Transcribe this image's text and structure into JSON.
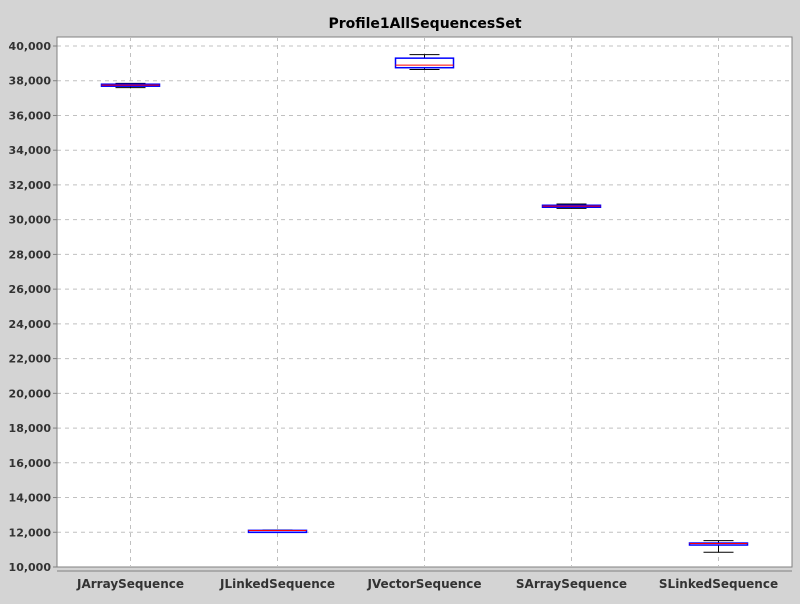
{
  "chart_data": {
    "type": "boxplot",
    "title": "Profile1AllSequencesSet",
    "xlabel": "",
    "ylabel": "",
    "ylim": [
      10000,
      40000
    ],
    "yticks": [
      10000,
      12000,
      14000,
      16000,
      18000,
      20000,
      22000,
      24000,
      26000,
      28000,
      30000,
      32000,
      34000,
      36000,
      38000,
      40000
    ],
    "ytick_labels": [
      "10,000",
      "12,000",
      "14,000",
      "16,000",
      "18,000",
      "20,000",
      "22,000",
      "24,000",
      "26,000",
      "28,000",
      "30,000",
      "32,000",
      "34,000",
      "36,000",
      "38,000",
      "40,000"
    ],
    "grid": true,
    "categories": [
      "JArraySequence",
      "JLinkedSequence",
      "JVectorSequence",
      "SArraySequence",
      "SLinkedSequence"
    ],
    "boxes": [
      {
        "category": "JArraySequence",
        "whisker_low": 37600,
        "q1": 37700,
        "median": 37750,
        "q3": 37800,
        "whisker_high": 37850
      },
      {
        "category": "JLinkedSequence",
        "whisker_low": 12060,
        "q1": 12080,
        "median": 12100,
        "q3": 12110,
        "whisker_high": 12130
      },
      {
        "category": "JVectorSequence",
        "whisker_low": 38650,
        "q1": 38750,
        "median": 38900,
        "q3": 39300,
        "whisker_high": 39500
      },
      {
        "category": "SArraySequence",
        "whisker_low": 30650,
        "q1": 30730,
        "median": 30780,
        "q3": 30830,
        "whisker_high": 30900
      },
      {
        "category": "SLinkedSequence",
        "whisker_low": 10850,
        "q1": 11300,
        "median": 11350,
        "q3": 11380,
        "whisker_high": 11520
      }
    ],
    "colors": {
      "box_outline": "#0000ff",
      "median": "#ff0000",
      "whisker": "#000000",
      "plot_background": "#ffffff",
      "page_background": "#d4d4d4",
      "grid": "#c0c0c0"
    }
  }
}
